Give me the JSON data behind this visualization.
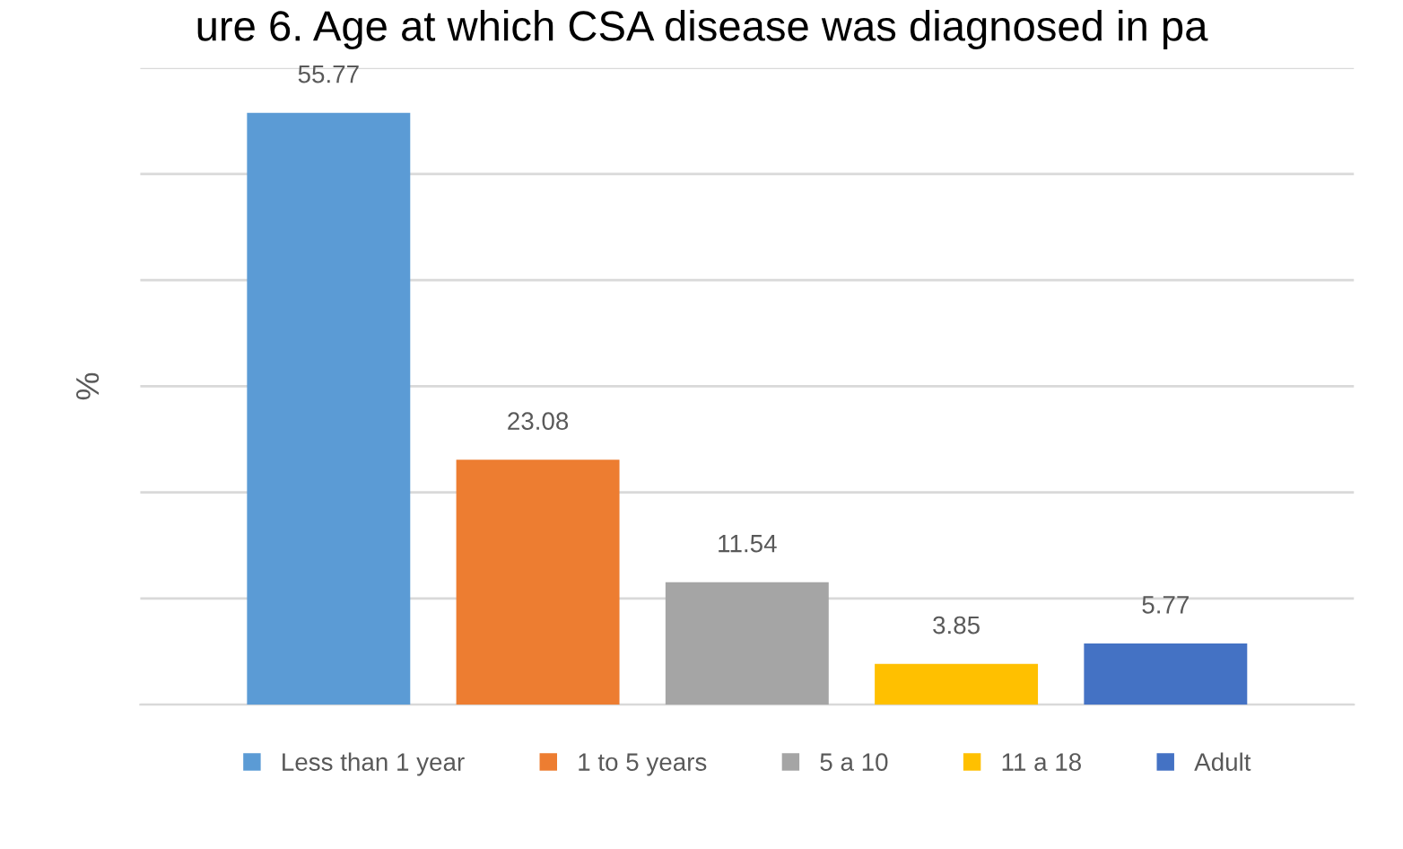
{
  "chart_data": {
    "type": "bar",
    "title": "ure 6. Age at which CSA disease was diagnosed in pa",
    "ylabel": "%",
    "categories": [
      null,
      null,
      null,
      null,
      null
    ],
    "series": [
      {
        "name": "Less than 1 year",
        "color": "#5b9bd5",
        "values": [
          55.77,
          null,
          null,
          null,
          null
        ]
      },
      {
        "name": "1 to 5 years",
        "color": "#ed7d31",
        "values": [
          null,
          23.08,
          null,
          null,
          null
        ]
      },
      {
        "name": "5 a 10",
        "color": "#a5a5a5",
        "values": [
          null,
          null,
          11.54,
          null,
          null
        ]
      },
      {
        "name": "11 a 18",
        "color": "#ffc000",
        "values": [
          null,
          null,
          null,
          3.85,
          null
        ]
      },
      {
        "name": "Adult",
        "color": "#4472c4",
        "values": [
          null,
          null,
          null,
          null,
          5.77
        ]
      }
    ],
    "ylim": [
      0,
      60
    ],
    "yticks": [
      {
        "value": 0,
        "label": null
      },
      {
        "value": 10,
        "label": null
      },
      {
        "value": 20,
        "label": null
      },
      {
        "value": 30,
        "label": null
      },
      {
        "value": 40,
        "label": null
      },
      {
        "value": 50,
        "label": null
      },
      {
        "value": 60,
        "label": null
      }
    ],
    "stacked": true,
    "grid": "y",
    "legend": "bottom",
    "tick_labels": false,
    "data_labels": true
  }
}
